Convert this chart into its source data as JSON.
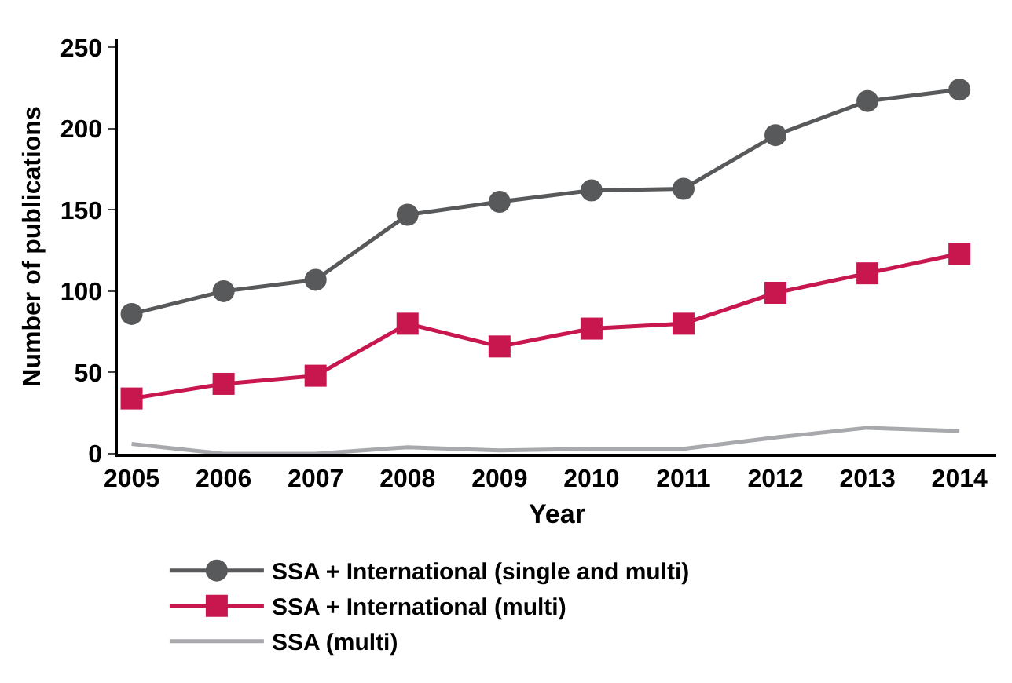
{
  "chart_data": {
    "type": "line",
    "xlabel": "Year",
    "ylabel": "Number of publications",
    "x": [
      2005,
      2006,
      2007,
      2008,
      2009,
      2010,
      2011,
      2012,
      2013,
      2014
    ],
    "xlim": [
      2004.85,
      2014.4
    ],
    "xticks": [
      2005,
      2006,
      2007,
      2008,
      2009,
      2010,
      2011,
      2012,
      2013,
      2014
    ],
    "ylim": [
      0,
      255
    ],
    "yticks": [
      0,
      50,
      100,
      150,
      200,
      250
    ],
    "legend": "bottom",
    "series": [
      {
        "name": "SSA + International (single and multi)",
        "color": "#58595b",
        "marker": "circle",
        "values": [
          86,
          100,
          107,
          147,
          155,
          162,
          163,
          196,
          217,
          224
        ]
      },
      {
        "name": "SSA + International (multi)",
        "color": "#c8174f",
        "marker": "square",
        "values": [
          34,
          43,
          48,
          80,
          66,
          77,
          80,
          99,
          111,
          123
        ]
      },
      {
        "name": "SSA (multi)",
        "color": "#a7a9ac",
        "marker": "none",
        "values": [
          6,
          0,
          0,
          4,
          2,
          3,
          3,
          10,
          16,
          14
        ]
      }
    ]
  }
}
